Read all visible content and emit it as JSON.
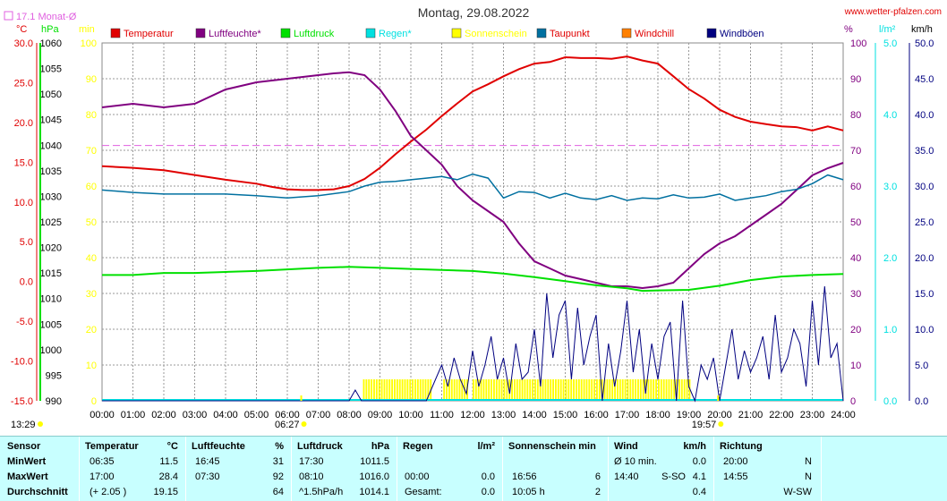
{
  "header": {
    "title": "Montag, 29.08.2022",
    "site": "www.wetter-pfalzen.com"
  },
  "colors": {
    "temperature": "#e00000",
    "humidity": "#800080",
    "pressure": "#00e000",
    "rain": "#00e0e0",
    "sunshine": "#ffff00",
    "dewpoint": "#0070a0",
    "windchill": "#ff8000",
    "gusts": "#000080",
    "average": "#e060e0"
  },
  "chart_data": {
    "type": "line",
    "title": "Montag, 29.08.2022",
    "average_label": "17.1 Monat-Ø",
    "average_temperature": 17.1,
    "legend": [
      "Temperatur",
      "Luftfeuchte*",
      "Luftdruck",
      "Regen*",
      "Sonnenschein",
      "Taupunkt",
      "Windchill",
      "Windböen"
    ],
    "axes": {
      "temperature": {
        "unit": "°C",
        "ylim": [
          -15,
          30
        ],
        "ticks": [
          "30.0",
          "25.0",
          "20.0",
          "15.0",
          "10.0",
          "5.0",
          "0.0",
          "-5.0",
          "-10.0",
          "-15.0"
        ]
      },
      "pressure": {
        "unit": "hPa",
        "ylim": [
          990,
          1060
        ],
        "ticks": [
          "1060",
          "1055",
          "1050",
          "1045",
          "1040",
          "1035",
          "1030",
          "1025",
          "1020",
          "1015",
          "1010",
          "1005",
          "1000",
          "995",
          "990"
        ]
      },
      "sunshine": {
        "unit": "min",
        "ylim": [
          0,
          100
        ],
        "ticks": [
          "100",
          "90",
          "80",
          "70",
          "60",
          "50",
          "40",
          "30",
          "20",
          "10",
          "0"
        ]
      },
      "humidity": {
        "unit": "%",
        "ylim": [
          0,
          100
        ],
        "ticks": [
          "100",
          "90",
          "80",
          "70",
          "60",
          "50",
          "40",
          "30",
          "20",
          "10",
          "0"
        ]
      },
      "rain": {
        "unit": "l/m²",
        "ylim": [
          0,
          5
        ],
        "ticks": [
          "5.0",
          "4.0",
          "3.0",
          "2.0",
          "1.0",
          "0.0"
        ]
      },
      "wind": {
        "unit": "km/h",
        "ylim": [
          0,
          50
        ],
        "ticks": [
          "50.0",
          "45.0",
          "40.0",
          "35.0",
          "30.0",
          "25.0",
          "20.0",
          "15.0",
          "10.0",
          "5.0",
          "0.0"
        ]
      }
    },
    "x_ticks": [
      "00:00",
      "01:00",
      "02:00",
      "03:00",
      "04:00",
      "05:00",
      "06:00",
      "07:00",
      "08:00",
      "09:00",
      "10:00",
      "11:00",
      "12:00",
      "13:00",
      "14:00",
      "15:00",
      "16:00",
      "17:00",
      "18:00",
      "19:00",
      "20:00",
      "21:00",
      "22:00",
      "23:00",
      "24:00"
    ],
    "sunrise": {
      "time": "06:27",
      "hour": 6.45
    },
    "sunset": {
      "time": "19:57",
      "hour": 19.95
    },
    "bottom_left_time": "13:29",
    "series": [
      {
        "name": "Temperatur",
        "axis": "temperature",
        "x": [
          0,
          1,
          2,
          3,
          4,
          5,
          5.5,
          6,
          6.5,
          7,
          7.5,
          8,
          8.5,
          9,
          9.5,
          10,
          10.5,
          11,
          11.5,
          12,
          12.5,
          13,
          13.5,
          14,
          14.5,
          15,
          15.5,
          16,
          16.5,
          17,
          17.5,
          18,
          18.5,
          19,
          19.5,
          20,
          20.5,
          21,
          21.5,
          22,
          22.5,
          23,
          23.5,
          24
        ],
        "y": [
          14.5,
          14.3,
          14.0,
          13.4,
          12.8,
          12.3,
          11.9,
          11.6,
          11.5,
          11.5,
          11.6,
          12.0,
          12.9,
          14.3,
          16.0,
          17.6,
          19.1,
          20.8,
          22.4,
          23.9,
          24.8,
          25.8,
          26.7,
          27.4,
          27.6,
          28.2,
          28.1,
          28.1,
          28.0,
          28.3,
          27.8,
          27.4,
          25.8,
          24.2,
          23.0,
          21.6,
          20.7,
          20.1,
          19.8,
          19.5,
          19.4,
          19.0,
          19.5,
          19.0
        ]
      },
      {
        "name": "Luftfeuchte*",
        "axis": "humidity",
        "x": [
          0,
          1,
          2,
          3,
          4,
          5,
          6,
          7,
          7.5,
          8,
          8.5,
          9,
          9.5,
          10,
          10.5,
          11,
          11.5,
          12,
          12.5,
          13,
          13.5,
          14,
          14.5,
          15,
          15.5,
          16,
          16.5,
          17,
          17.5,
          18,
          18.5,
          19,
          19.5,
          20,
          20.5,
          21,
          21.5,
          22,
          22.5,
          23,
          23.5,
          24
        ],
        "y": [
          82,
          83,
          82,
          83,
          87,
          89,
          90,
          91,
          91.5,
          91.8,
          91,
          87,
          81,
          74,
          70,
          66,
          60,
          56,
          53,
          50,
          44,
          39,
          37,
          35,
          34,
          33,
          32,
          32,
          31.5,
          32,
          33,
          37,
          41,
          44,
          46,
          49,
          52,
          55,
          59,
          63,
          65,
          66.5
        ]
      },
      {
        "name": "Luftdruck",
        "axis": "pressure",
        "x": [
          0,
          1,
          2,
          3,
          4,
          5,
          6,
          7,
          8,
          9,
          10,
          11,
          12,
          13,
          14,
          15,
          16,
          17,
          17.5,
          18,
          19,
          20,
          21,
          22,
          23,
          24
        ],
        "y": [
          1014.6,
          1014.6,
          1015.0,
          1015.0,
          1015.2,
          1015.4,
          1015.7,
          1016.0,
          1016.2,
          1016.0,
          1015.8,
          1015.6,
          1015.4,
          1014.9,
          1014.2,
          1013.4,
          1012.6,
          1012.0,
          1011.5,
          1011.6,
          1011.7,
          1012.5,
          1013.6,
          1014.3,
          1014.6,
          1014.8
        ]
      },
      {
        "name": "Taupunkt",
        "axis": "temperature",
        "x": [
          0,
          1,
          2,
          3,
          4,
          5,
          6,
          7,
          8,
          8.5,
          9,
          9.5,
          10,
          10.5,
          11,
          11.5,
          12,
          12.5,
          13,
          13.5,
          14,
          14.5,
          15,
          15.5,
          16,
          16.5,
          17,
          17.5,
          18,
          18.5,
          19,
          19.5,
          20,
          20.5,
          21,
          21.5,
          22,
          22.5,
          23,
          23.5,
          24
        ],
        "y": [
          11.5,
          11.2,
          11.0,
          11.0,
          11.0,
          10.8,
          10.5,
          10.8,
          11.3,
          12.0,
          12.5,
          12.6,
          12.8,
          13.0,
          13.2,
          12.8,
          13.5,
          13.0,
          10.5,
          11.3,
          11.2,
          10.5,
          11.1,
          10.5,
          10.3,
          10.8,
          10.2,
          10.5,
          10.4,
          10.9,
          10.5,
          10.6,
          11.0,
          10.2,
          10.5,
          10.8,
          11.3,
          11.6,
          12.3,
          13.4,
          12.8
        ]
      },
      {
        "name": "Windböen",
        "axis": "wind",
        "x": [
          0,
          8,
          8.2,
          8.4,
          10.5,
          10.8,
          11,
          11.2,
          11.4,
          11.6,
          11.8,
          12,
          12.2,
          12.4,
          12.6,
          12.8,
          13,
          13.2,
          13.4,
          13.6,
          13.8,
          14,
          14.2,
          14.4,
          14.6,
          14.8,
          15,
          15.2,
          15.4,
          15.6,
          15.8,
          16,
          16.2,
          16.4,
          16.6,
          16.8,
          17,
          17.2,
          17.4,
          17.6,
          17.8,
          18,
          18.2,
          18.4,
          18.6,
          18.8,
          19,
          19.2,
          19.4,
          19.6,
          19.8,
          20,
          20.2,
          20.4,
          20.6,
          20.8,
          21,
          21.2,
          21.4,
          21.6,
          21.8,
          22,
          22.2,
          22.4,
          22.6,
          22.8,
          23,
          23.2,
          23.4,
          23.6,
          23.8,
          24
        ],
        "y": [
          0,
          0,
          1.5,
          0,
          0,
          3,
          5,
          2,
          6,
          3,
          1,
          7,
          2,
          5,
          9,
          3,
          6,
          1,
          8,
          3,
          4,
          10,
          2,
          15,
          6,
          12,
          14,
          3,
          13,
          5,
          9,
          12,
          0,
          8,
          2,
          7,
          14,
          4,
          10,
          1,
          8,
          3,
          9,
          11,
          0,
          14,
          2,
          0,
          5,
          3,
          6,
          0,
          5,
          10,
          3,
          7,
          4,
          6,
          9,
          3,
          12,
          4,
          6,
          10,
          8,
          2,
          14,
          5,
          16,
          6,
          8,
          0
        ]
      }
    ],
    "sunshine_bars": {
      "minutes": 6,
      "intervals": [
        [
          8.45,
          10.7
        ],
        [
          11.05,
          11.85
        ],
        [
          12.0,
          19.0
        ]
      ]
    }
  },
  "stats": {
    "headers": {
      "sensor": "Sensor",
      "temp": "Temperatur",
      "temp_unit": "°C",
      "hum": "Luftfeuchte",
      "hum_unit": "%",
      "press": "Luftdruck",
      "press_unit": "hPa",
      "rain": "Regen",
      "rain_unit": "l/m²",
      "sun": "Sonnenschein min",
      "wind": "Wind",
      "wind_unit": "km/h",
      "dir": "Richtung"
    },
    "row_labels": [
      "MinWert",
      "MaxWert",
      "Durchschnitt"
    ],
    "rows": [
      {
        "temp_t": "06:35",
        "temp_v": "11.5",
        "hum_t": "16:45",
        "hum_v": "31",
        "press_t": "17:30",
        "press_v": "1011.5",
        "rain_t": "",
        "rain_v": "",
        "sun_t": "",
        "sun_v": "",
        "wind_t": "Ø 10 min.",
        "wind_dir": "",
        "wind_v": "0.0",
        "dir_t": "20:00",
        "dir_v": "N"
      },
      {
        "temp_t": "17:00",
        "temp_v": "28.4",
        "hum_t": "07:30",
        "hum_v": "92",
        "press_t": "08:10",
        "press_v": "1016.0",
        "rain_t": "00:00",
        "rain_v": "0.0",
        "sun_t": "16:56",
        "sun_v": "6",
        "wind_t": "14:40",
        "wind_dir": "S-SO",
        "wind_v": "4.1",
        "dir_t": "14:55",
        "dir_v": "N"
      },
      {
        "temp_t": "(+ 2.05 )",
        "temp_v": "19.15",
        "hum_t": "",
        "hum_v": "64",
        "press_t": "^1.5hPa/h",
        "press_v": "1014.1",
        "rain_t": "Gesamt:",
        "rain_v": "0.0",
        "sun_t": "10:05 h",
        "sun_v": "2",
        "wind_t": "",
        "wind_dir": "",
        "wind_v": "0.4",
        "dir_t": "",
        "dir_v": "W-SW"
      }
    ]
  }
}
